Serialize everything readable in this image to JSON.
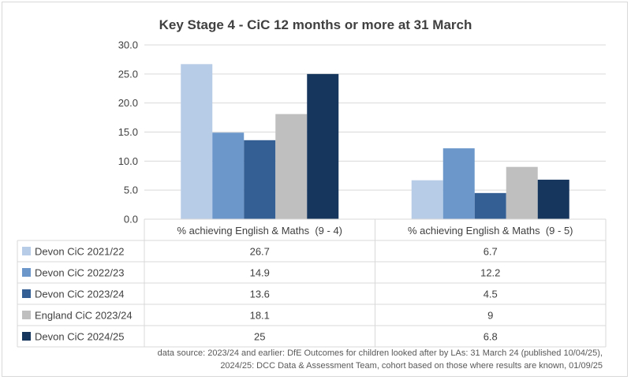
{
  "chart_data": {
    "type": "bar",
    "title": "Key Stage 4 - CiC 12 months or more at 31 March",
    "categories": [
      "% achieving English & Maths  (9 - 4)",
      "% achieving English & Maths  (9 - 5)"
    ],
    "series": [
      {
        "name": "Devon CiC 2021/22",
        "values": [
          26.7,
          6.7
        ],
        "color": "#b7cce6"
      },
      {
        "name": "Devon CiC 2022/23",
        "values": [
          14.9,
          12.2
        ],
        "color": "#6b97cb"
      },
      {
        "name": "Devon CiC 2023/24",
        "values": [
          13.6,
          4.5
        ],
        "color": "#335f95"
      },
      {
        "name": "England CiC 2023/24",
        "values": [
          18.1,
          9
        ],
        "color": "#bfbfbf"
      },
      {
        "name": "Devon CiC 2024/25",
        "values": [
          25,
          6.8
        ],
        "color": "#17365d"
      }
    ],
    "ylim": [
      0,
      30
    ],
    "yticks": [
      "0.0",
      "5.0",
      "10.0",
      "15.0",
      "20.0",
      "25.0",
      "30.0"
    ],
    "grid": true,
    "legend": "data-table"
  },
  "source": {
    "line1": "data source: 2023/24 and earlier: DfE Outcomes for children looked after by LAs: 31 March 24 (published 10/04/25),",
    "line2": "2024/25: DCC Data & Assessment Team, cohort based on those where results are known, 01/09/25"
  }
}
